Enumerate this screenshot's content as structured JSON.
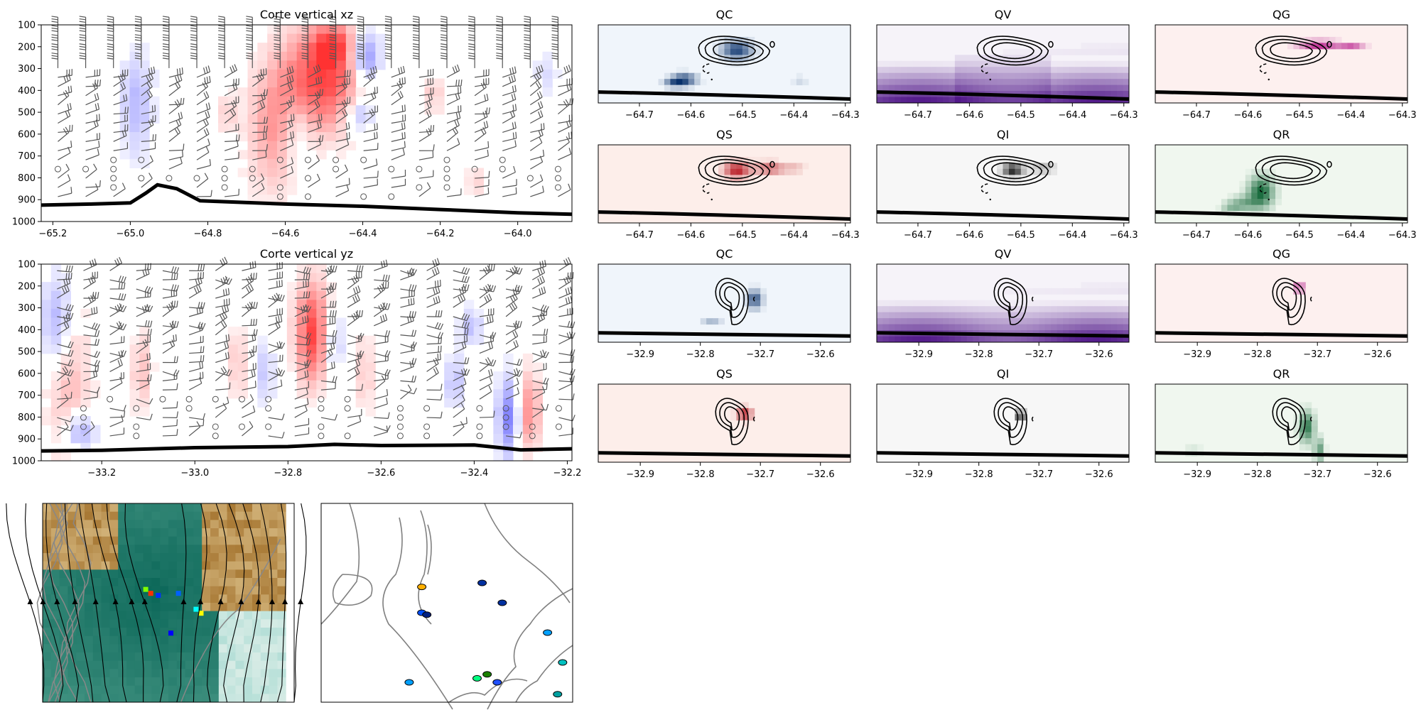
{
  "chart_data": [
    {
      "id": "xz",
      "type": "heatmap",
      "title": "Corte vertical xz",
      "x_ticks": [
        "−65.2",
        "−65.0",
        "−64.8",
        "−64.6",
        "−64.4",
        "−64.2",
        "−64.0"
      ],
      "x_tick_values": [
        -65.2,
        -65.0,
        -64.8,
        -64.6,
        -64.4,
        -64.2,
        -64.0
      ],
      "xlim": [
        -65.23,
        -63.86
      ],
      "y_ticks": [
        "100",
        "200",
        "300",
        "400",
        "500",
        "600",
        "700",
        "800",
        "900",
        "1000"
      ],
      "y_tick_values": [
        100,
        200,
        300,
        400,
        500,
        600,
        700,
        800,
        900,
        1000
      ],
      "ylim": [
        1000,
        100
      ],
      "y_inverted": true,
      "colormap": "bwr",
      "overlays": [
        "wind barbs",
        "terrain line"
      ],
      "terrain": {
        "x": [
          -65.23,
          -65.1,
          -65.0,
          -64.96,
          -64.93,
          -64.88,
          -64.82,
          -64.6,
          -64.4,
          -64.2,
          -64.0,
          -63.86
        ],
        "p": [
          925,
          920,
          915,
          870,
          832,
          850,
          905,
          920,
          930,
          945,
          960,
          967
        ]
      }
    },
    {
      "id": "yz",
      "type": "heatmap",
      "title": "Corte vertical yz",
      "x_ticks": [
        "−33.2",
        "−33.0",
        "−32.8",
        "−32.6",
        "−32.4",
        "−32.2"
      ],
      "x_tick_values": [
        -33.2,
        -33.0,
        -32.8,
        -32.6,
        -32.4,
        -32.2
      ],
      "xlim": [
        -33.33,
        -32.19
      ],
      "y_ticks": [
        "100",
        "200",
        "300",
        "400",
        "500",
        "600",
        "700",
        "800",
        "900",
        "1000"
      ],
      "y_tick_values": [
        100,
        200,
        300,
        400,
        500,
        600,
        700,
        800,
        900,
        1000
      ],
      "ylim": [
        1000,
        100
      ],
      "y_inverted": true,
      "colormap": "bwr",
      "overlays": [
        "wind barbs",
        "terrain line"
      ],
      "terrain": {
        "x": [
          -33.33,
          -33.2,
          -33.0,
          -32.8,
          -32.7,
          -32.6,
          -32.4,
          -32.3,
          -32.19
        ],
        "p": [
          955,
          952,
          940,
          935,
          925,
          930,
          928,
          950,
          945
        ]
      }
    },
    {
      "id": "xz-qc",
      "type": "heatmap",
      "title": "QC",
      "colormap": "Blues",
      "x_ticks": [
        "−64.7",
        "−64.6",
        "−64.5",
        "−64.4",
        "−64.3"
      ],
      "x_tick_values": [
        -64.7,
        -64.6,
        -64.5,
        -64.4,
        -64.3
      ],
      "xlim": [
        -64.78,
        -64.29
      ],
      "overlays": [
        "contours",
        "terrain line"
      ]
    },
    {
      "id": "xz-qv",
      "type": "heatmap",
      "title": "QV",
      "colormap": "Purples",
      "x_ticks": [
        "−64.7",
        "−64.6",
        "−64.5",
        "−64.4",
        "−64.3"
      ],
      "x_tick_values": [
        -64.7,
        -64.6,
        -64.5,
        -64.4,
        -64.3
      ],
      "xlim": [
        -64.78,
        -64.29
      ],
      "overlays": [
        "contours",
        "terrain line"
      ]
    },
    {
      "id": "xz-qg",
      "type": "heatmap",
      "title": "QG",
      "colormap": "RdPu",
      "x_ticks": [
        "−64.7",
        "−64.6",
        "−64.5",
        "−64.4",
        "−64.3"
      ],
      "x_tick_values": [
        -64.7,
        -64.6,
        -64.5,
        -64.4,
        -64.3
      ],
      "xlim": [
        -64.78,
        -64.29
      ],
      "overlays": [
        "contours",
        "terrain line"
      ]
    },
    {
      "id": "xz-qs",
      "type": "heatmap",
      "title": "QS",
      "colormap": "Reds",
      "x_ticks": [
        "−64.7",
        "−64.6",
        "−64.5",
        "−64.4",
        "−64.3"
      ],
      "x_tick_values": [
        -64.7,
        -64.6,
        -64.5,
        -64.4,
        -64.3
      ],
      "xlim": [
        -64.78,
        -64.29
      ],
      "overlays": [
        "contours",
        "terrain line"
      ]
    },
    {
      "id": "xz-qi",
      "type": "heatmap",
      "title": "QI",
      "colormap": "Greys",
      "x_ticks": [
        "−64.7",
        "−64.6",
        "−64.5",
        "−64.4",
        "−64.3"
      ],
      "x_tick_values": [
        -64.7,
        -64.6,
        -64.5,
        -64.4,
        -64.3
      ],
      "xlim": [
        -64.78,
        -64.29
      ],
      "overlays": [
        "contours",
        "terrain line"
      ]
    },
    {
      "id": "xz-qr",
      "type": "heatmap",
      "title": "QR",
      "colormap": "Greens",
      "x_ticks": [
        "−64.7",
        "−64.6",
        "−64.5",
        "−64.4",
        "−64.3"
      ],
      "x_tick_values": [
        -64.7,
        -64.6,
        -64.5,
        -64.4,
        -64.3
      ],
      "xlim": [
        -64.78,
        -64.29
      ],
      "overlays": [
        "contours",
        "terrain line"
      ]
    },
    {
      "id": "yz-qc",
      "type": "heatmap",
      "title": "QC",
      "colormap": "Blues",
      "x_ticks": [
        "−32.9",
        "−32.8",
        "−32.7",
        "−32.6"
      ],
      "x_tick_values": [
        -32.9,
        -32.8,
        -32.7,
        -32.6
      ],
      "xlim": [
        -32.97,
        -32.55
      ],
      "overlays": [
        "contours",
        "terrain line"
      ]
    },
    {
      "id": "yz-qv",
      "type": "heatmap",
      "title": "QV",
      "colormap": "Purples",
      "x_ticks": [
        "−32.9",
        "−32.8",
        "−32.7",
        "−32.6"
      ],
      "x_tick_values": [
        -32.9,
        -32.8,
        -32.7,
        -32.6
      ],
      "xlim": [
        -32.97,
        -32.55
      ],
      "overlays": [
        "contours",
        "terrain line"
      ]
    },
    {
      "id": "yz-qg",
      "type": "heatmap",
      "title": "QG",
      "colormap": "RdPu",
      "x_ticks": [
        "−32.9",
        "−32.8",
        "−32.7",
        "−32.6"
      ],
      "x_tick_values": [
        -32.9,
        -32.8,
        -32.7,
        -32.6
      ],
      "xlim": [
        -32.97,
        -32.55
      ],
      "overlays": [
        "contours",
        "terrain line"
      ]
    },
    {
      "id": "yz-qs",
      "type": "heatmap",
      "title": "QS",
      "colormap": "Reds",
      "x_ticks": [
        "−32.9",
        "−32.8",
        "−32.7",
        "−32.6"
      ],
      "x_tick_values": [
        -32.9,
        -32.8,
        -32.7,
        -32.6
      ],
      "xlim": [
        -32.97,
        -32.55
      ],
      "overlays": [
        "contours",
        "terrain line"
      ]
    },
    {
      "id": "yz-qi",
      "type": "heatmap",
      "title": "QI",
      "colormap": "Greys",
      "x_ticks": [
        "−32.9",
        "−32.8",
        "−32.7",
        "−32.6"
      ],
      "x_tick_values": [
        -32.9,
        -32.8,
        -32.7,
        -32.6
      ],
      "xlim": [
        -32.97,
        -32.55
      ],
      "overlays": [
        "contours",
        "terrain line"
      ]
    },
    {
      "id": "yz-qr",
      "type": "heatmap",
      "title": "QR",
      "colormap": "Greens",
      "x_ticks": [
        "−32.9",
        "−32.8",
        "−32.7",
        "−32.6"
      ],
      "x_tick_values": [
        -32.9,
        -32.8,
        -32.7,
        -32.6
      ],
      "xlim": [
        -32.97,
        -32.55
      ],
      "overlays": [
        "contours",
        "terrain line"
      ]
    },
    {
      "id": "map-streamlines",
      "type": "heatmap",
      "title": "",
      "colormap": "BrBG",
      "overlays": [
        "streamlines",
        "terrain contours",
        "precipitation cells"
      ]
    },
    {
      "id": "map-precip",
      "type": "heatmap",
      "title": "",
      "colormap": "jet",
      "overlays": [
        "coastline contours",
        "precipitation cells"
      ]
    }
  ],
  "colors": {
    "terrain": "#000000",
    "barbs": "#555555",
    "contour": "#808080",
    "frame": "#000000"
  }
}
